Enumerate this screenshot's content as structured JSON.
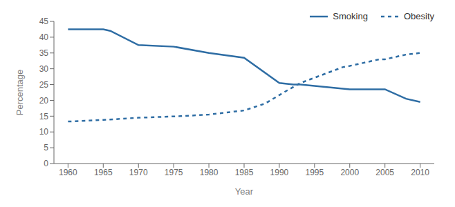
{
  "chart_data": {
    "type": "line",
    "xlabel": "Year",
    "ylabel": "Percentage",
    "xlim": [
      1958,
      2012
    ],
    "ylim": [
      0,
      45
    ],
    "xticks": [
      1960,
      1965,
      1970,
      1975,
      1980,
      1985,
      1990,
      1995,
      2000,
      2005,
      2010
    ],
    "yticks": [
      0,
      5,
      10,
      15,
      20,
      25,
      30,
      35,
      40,
      45
    ],
    "grid": false,
    "legend": "upper right",
    "series": [
      {
        "name": "Smoking",
        "color": "#2e6da4",
        "line_style": "solid",
        "x": [
          1960,
          1965,
          1966,
          1970,
          1975,
          1980,
          1985,
          1990,
          1992,
          1993,
          2000,
          2005,
          2008,
          2010
        ],
        "values": [
          42.5,
          42.5,
          42.0,
          37.5,
          37.0,
          35.0,
          33.5,
          25.5,
          25.0,
          25.0,
          23.5,
          23.5,
          20.5,
          19.5
        ]
      },
      {
        "name": "Obesity",
        "color": "#2e6da4",
        "line_style": "dotted",
        "x": [
          1960,
          1965,
          1970,
          1976,
          1980,
          1985,
          1988,
          1991,
          1993,
          1999,
          2000,
          2004,
          2005,
          2008,
          2010
        ],
        "values": [
          13.3,
          13.8,
          14.5,
          15.0,
          15.5,
          16.8,
          19.0,
          23.0,
          25.5,
          30.5,
          30.9,
          32.9,
          33.0,
          34.5,
          35.0
        ]
      }
    ]
  }
}
